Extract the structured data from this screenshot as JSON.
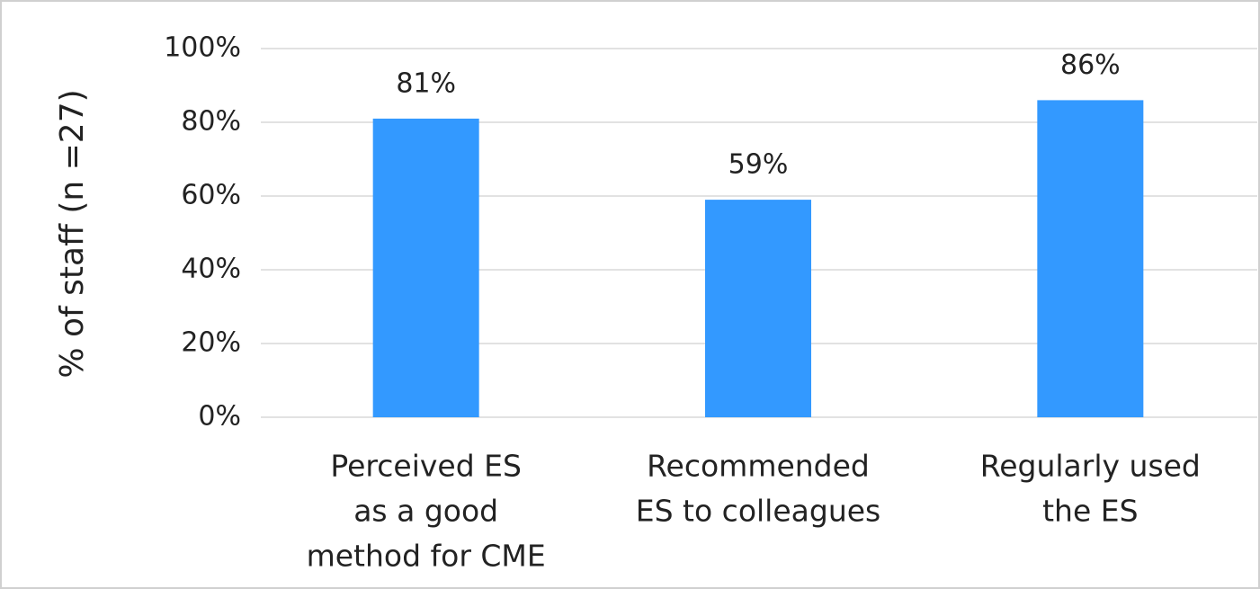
{
  "chart_data": {
    "type": "bar",
    "y_label": "% of staff (n =27)",
    "categories": [
      [
        "Perceived ES",
        "as a good",
        "method for CME"
      ],
      [
        "Recommended",
        "ES to colleagues"
      ],
      [
        "Regularly used",
        "the ES"
      ]
    ],
    "values": [
      81,
      59,
      86
    ],
    "value_labels": [
      "81%",
      "59%",
      "86%"
    ],
    "color": "#3399ff",
    "ylim": [
      0,
      100
    ],
    "yticks": [
      {
        "value": 0,
        "label": "0%"
      },
      {
        "value": 20,
        "label": "20%"
      },
      {
        "value": 40,
        "label": "40%"
      },
      {
        "value": 60,
        "label": "60%"
      },
      {
        "value": 80,
        "label": "80%"
      },
      {
        "value": 100,
        "label": "100%"
      }
    ],
    "grid": true
  }
}
